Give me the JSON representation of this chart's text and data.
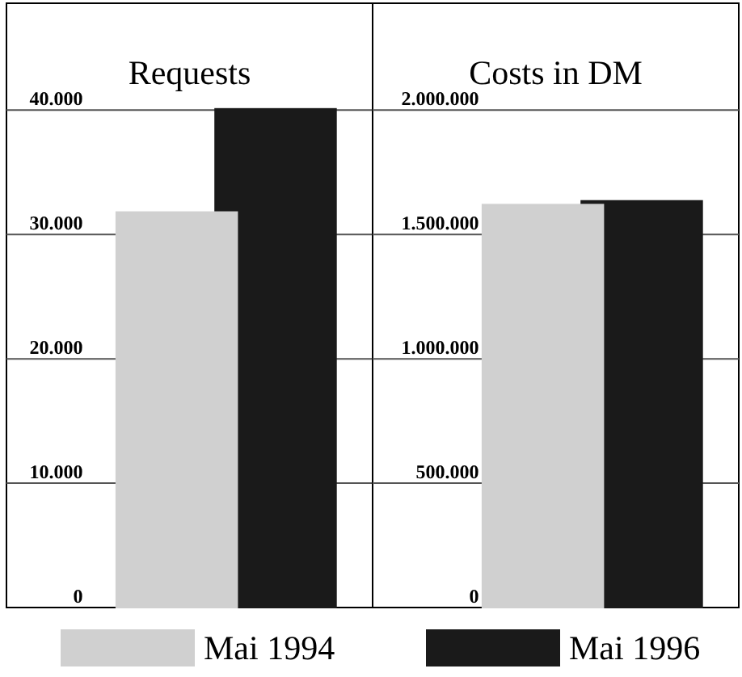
{
  "chart_data": [
    {
      "type": "bar",
      "title": "Requests",
      "categories": [
        null
      ],
      "series": [
        {
          "name": "Mai 1994",
          "color": "#d0d0d0",
          "values": [
            31800
          ]
        },
        {
          "name": "Mai 1996",
          "color": "#1a1a1a",
          "values": [
            40100
          ]
        }
      ],
      "ylim": [
        0,
        48600
      ],
      "yticks": [
        {
          "value": 0,
          "label": "0"
        },
        {
          "value": 10000,
          "label": "10.000"
        },
        {
          "value": 20000,
          "label": "20.000"
        },
        {
          "value": 30000,
          "label": "30.000"
        },
        {
          "value": 40000,
          "label": "40.000"
        }
      ],
      "grid": "y",
      "legend": "bottom"
    },
    {
      "type": "bar",
      "title": "Costs in DM",
      "categories": [
        null
      ],
      "series": [
        {
          "color": "#d0d0d0",
          "values": [
            1620000
          ]
        },
        {
          "color": "#1a1a1a",
          "values": [
            1635000
          ]
        }
      ],
      "ylim": [
        0,
        2430000
      ],
      "yticks": [
        {
          "value": 0,
          "label": "0"
        },
        {
          "value": 500000,
          "label": "500.000"
        },
        {
          "value": 1000000,
          "label": "1.000.000"
        },
        {
          "value": 1500000,
          "label": "1.500.000"
        },
        {
          "value": 2000000,
          "label": "2.000.000"
        }
      ],
      "grid": "y"
    }
  ]
}
